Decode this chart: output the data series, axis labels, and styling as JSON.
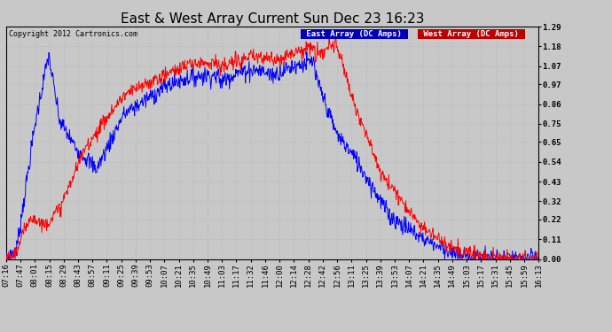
{
  "title": "East & West Array Current Sun Dec 23 16:23",
  "copyright": "Copyright 2012 Cartronics.com",
  "legend_east": "East Array (DC Amps)",
  "legend_west": "West Array (DC Amps)",
  "east_color": "#0000FF",
  "west_color": "#FF0000",
  "east_legend_bg": "#0000BB",
  "west_legend_bg": "#BB0000",
  "background_color": "#C8C8C8",
  "ylim": [
    0.0,
    1.29
  ],
  "yticks": [
    0.0,
    0.11,
    0.22,
    0.32,
    0.43,
    0.54,
    0.65,
    0.75,
    0.86,
    0.97,
    1.07,
    1.18,
    1.29
  ],
  "xtick_labels": [
    "07:16",
    "07:47",
    "08:01",
    "08:15",
    "08:29",
    "08:43",
    "08:57",
    "09:11",
    "09:25",
    "09:39",
    "09:53",
    "10:07",
    "10:21",
    "10:35",
    "10:49",
    "11:03",
    "11:17",
    "11:32",
    "11:46",
    "12:00",
    "12:14",
    "12:28",
    "12:42",
    "12:56",
    "13:11",
    "13:25",
    "13:39",
    "13:53",
    "14:07",
    "14:21",
    "14:35",
    "14:49",
    "15:03",
    "15:17",
    "15:31",
    "15:45",
    "15:59",
    "16:13"
  ],
  "grid_color": "#BBBBBB",
  "title_fontsize": 11,
  "tick_fontsize": 6.5,
  "copyright_fontsize": 6
}
